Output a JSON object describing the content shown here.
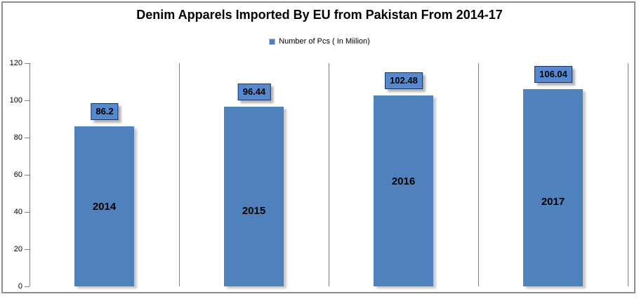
{
  "title": "Denim Apparels Imported By EU from Pakistan From 2014-17",
  "legend": {
    "label": "Number of Pcs ( In Miilion)"
  },
  "colors": {
    "bar": "#4F81BD",
    "label_box_fill": "#5588CE",
    "label_box_border": "#17375E",
    "grid": "#808080",
    "frame": "#8E8E8E",
    "text": "#000000"
  },
  "chart_data": {
    "type": "bar",
    "title": "Denim Apparels Imported By EU from Pakistan From 2014-17",
    "legend_entries": [
      "Number of Pcs ( In Miilion)"
    ],
    "legend_position": "top",
    "categories": [
      "2014",
      "2015",
      "2016",
      "2017"
    ],
    "series": [
      {
        "name": "Number of Pcs ( In Miilion)",
        "values": [
          86.2,
          96.44,
          102.48,
          106.04
        ]
      }
    ],
    "data_labels": [
      "86.2",
      "96.44",
      "102.48",
      "106.04"
    ],
    "xlabel": "",
    "ylabel": "",
    "ylim": [
      0,
      120
    ],
    "yticks": [
      0,
      20,
      40,
      60,
      80,
      100,
      120
    ],
    "grid": "vertical category separator lines only, no horizontal gridlines"
  }
}
